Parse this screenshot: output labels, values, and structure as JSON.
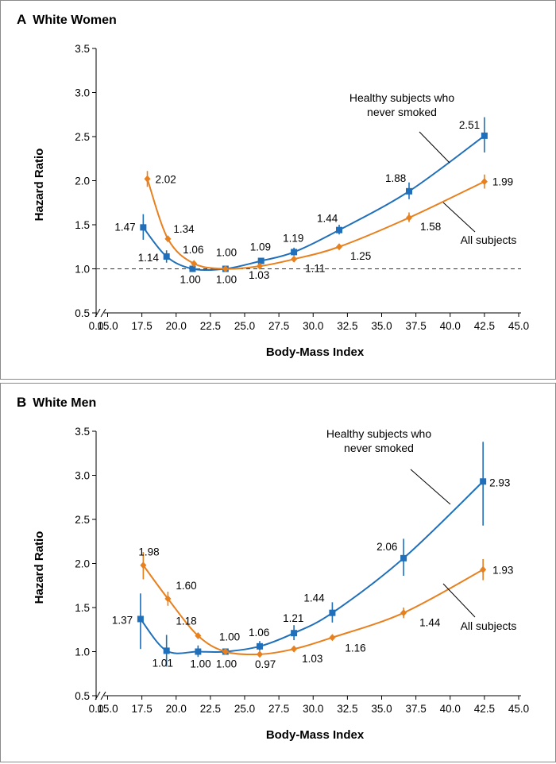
{
  "colors": {
    "healthy": "#1f6fba",
    "all": "#e8801e",
    "axis": "#000000",
    "reference": "#333333"
  },
  "chart_data": [
    {
      "type": "line",
      "panel_letter": "A",
      "title": "White Women",
      "xlabel": "Body-Mass Index",
      "ylabel": "Hazard Ratio",
      "xlim": [
        15.0,
        45.0
      ],
      "ylim": [
        0.5,
        3.5
      ],
      "x_ticks": [
        "0.0",
        "15.0",
        "17.5",
        "20.0",
        "22.5",
        "25.0",
        "27.5",
        "30.0",
        "32.5",
        "35.0",
        "37.5",
        "40.0",
        "42.5",
        "45.0"
      ],
      "y_ticks": [
        "0.5",
        "1.0",
        "1.5",
        "2.0",
        "2.5",
        "3.0",
        "3.5"
      ],
      "reference_line": 1.0,
      "series": [
        {
          "key": "healthy",
          "name": "Healthy subjects who never smoked",
          "legend_lines": [
            "Healthy subjects who",
            "never smoked"
          ],
          "marker": "square",
          "x": [
            17.6,
            19.3,
            21.2,
            23.6,
            26.2,
            28.6,
            31.9,
            37.0,
            42.5
          ],
          "y": [
            1.47,
            1.14,
            1.0,
            1.0,
            1.09,
            1.19,
            1.44,
            1.88,
            2.51
          ],
          "ci_low": [
            1.33,
            1.07,
            0.98,
            null,
            1.07,
            1.15,
            1.39,
            1.79,
            2.32
          ],
          "ci_high": [
            1.62,
            1.21,
            1.02,
            null,
            1.11,
            1.24,
            1.5,
            1.98,
            2.72
          ],
          "labels": [
            "1.47",
            "1.14",
            "1.00",
            "1.00",
            "1.09",
            "1.19",
            "1.44",
            "1.88",
            "2.51"
          ]
        },
        {
          "key": "all",
          "name": "All subjects",
          "legend_lines": [
            "All subjects"
          ],
          "marker": "diamond",
          "x": [
            17.9,
            19.4,
            21.3,
            23.6,
            26.1,
            28.6,
            31.9,
            37.0,
            42.5
          ],
          "y": [
            2.02,
            1.34,
            1.06,
            1.0,
            1.03,
            1.11,
            1.25,
            1.58,
            1.99
          ],
          "ci_low": [
            1.93,
            null,
            null,
            null,
            null,
            null,
            null,
            1.53,
            1.91
          ],
          "ci_high": [
            2.11,
            null,
            null,
            null,
            null,
            null,
            null,
            1.64,
            2.07
          ],
          "labels": [
            "2.02",
            "1.34",
            "1.06",
            "1.00",
            "1.03",
            "1.11",
            "1.25",
            "1.58",
            "1.99"
          ]
        }
      ]
    },
    {
      "type": "line",
      "panel_letter": "B",
      "title": "White Men",
      "xlabel": "Body-Mass Index",
      "ylabel": "Hazard Ratio",
      "xlim": [
        15.0,
        45.0
      ],
      "ylim": [
        0.5,
        3.5
      ],
      "x_ticks": [
        "0.0",
        "15.0",
        "17.5",
        "20.0",
        "22.5",
        "25.0",
        "27.5",
        "30.0",
        "32.5",
        "35.0",
        "37.5",
        "40.0",
        "42.5",
        "45.0"
      ],
      "y_ticks": [
        "0.5",
        "1.0",
        "1.5",
        "2.0",
        "2.5",
        "3.0",
        "3.5"
      ],
      "reference_line": null,
      "series": [
        {
          "key": "healthy",
          "name": "Healthy subjects who never smoked",
          "legend_lines": [
            "Healthy subjects who",
            "never smoked"
          ],
          "marker": "square",
          "x": [
            17.4,
            19.3,
            21.6,
            23.6,
            26.1,
            28.6,
            31.4,
            36.6,
            42.4
          ],
          "y": [
            1.37,
            1.01,
            1.0,
            1.0,
            1.06,
            1.21,
            1.44,
            2.06,
            2.93
          ],
          "ci_low": [
            1.03,
            0.83,
            0.94,
            null,
            1.01,
            1.13,
            1.33,
            1.86,
            2.43
          ],
          "ci_high": [
            1.66,
            1.19,
            1.07,
            null,
            1.12,
            1.3,
            1.56,
            2.28,
            3.38
          ],
          "labels": [
            "1.37",
            "1.01",
            "1.00",
            "1.00",
            "1.06",
            "1.21",
            "1.44",
            "2.06",
            "2.93"
          ]
        },
        {
          "key": "all",
          "name": "All subjects",
          "legend_lines": [
            "All subjects"
          ],
          "marker": "diamond",
          "x": [
            17.6,
            19.4,
            21.6,
            23.6,
            26.1,
            28.6,
            31.4,
            36.6,
            42.4
          ],
          "y": [
            1.98,
            1.6,
            1.18,
            1.0,
            0.97,
            1.03,
            1.16,
            1.44,
            1.93
          ],
          "ci_low": [
            1.82,
            1.52,
            null,
            null,
            null,
            null,
            null,
            1.38,
            1.81
          ],
          "ci_high": [
            2.13,
            1.68,
            null,
            null,
            null,
            null,
            null,
            1.5,
            2.05
          ],
          "labels": [
            "1.98",
            "1.60",
            "1.18",
            "1.00",
            "0.97",
            "1.03",
            "1.16",
            "1.44",
            "1.93"
          ]
        }
      ]
    }
  ]
}
